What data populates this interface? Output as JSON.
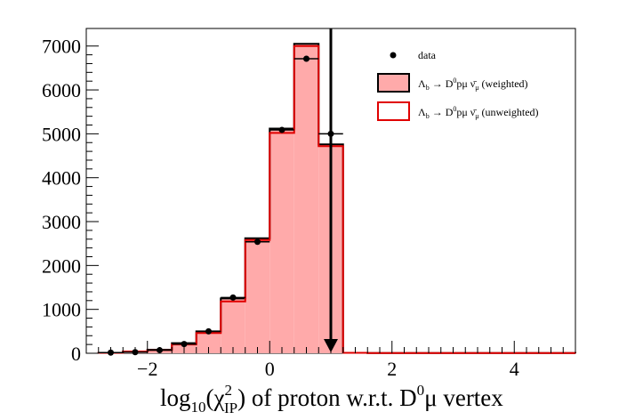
{
  "chart_data": {
    "type": "bar",
    "style": "histogram",
    "title": "",
    "xlabel": "log10(χ²IP) of proton w.r.t. D0μ vertex",
    "ylabel": "",
    "xlim": [
      -3,
      5
    ],
    "ylim": [
      0,
      7400
    ],
    "x_ticks": [
      "−2",
      "0",
      "2",
      "4"
    ],
    "y_ticks": [
      "0",
      "1000",
      "2000",
      "3000",
      "4000",
      "5000",
      "6000",
      "7000"
    ],
    "bin_edges": [
      -2.8,
      -2.4,
      -2.0,
      -1.6,
      -1.2,
      -0.8,
      -0.4,
      0.0,
      0.4,
      0.8,
      1.2,
      1.6,
      2.0,
      2.4,
      2.8,
      3.2,
      3.6,
      4.0,
      4.4,
      4.8,
      5.2
    ],
    "series": [
      {
        "name": "Λb → D0pμν̄μ (weighted)",
        "kind": "filled",
        "values": [
          10,
          40,
          80,
          230,
          500,
          1250,
          2620,
          5120,
          7050,
          4760,
          10,
          5,
          5,
          5,
          5,
          5,
          5,
          5,
          5,
          5
        ]
      },
      {
        "name": "Λb → D0pμν̄μ (unweighted)",
        "kind": "outline",
        "values": [
          10,
          40,
          70,
          200,
          460,
          1180,
          2580,
          5020,
          7000,
          4720,
          10,
          5,
          5,
          5,
          5,
          5,
          5,
          5,
          5,
          5
        ]
      },
      {
        "name": "data",
        "kind": "points",
        "x": [
          -2.8,
          -2.4,
          -2.0,
          -1.6,
          -1.2,
          -0.8,
          -0.4,
          0.0,
          0.4,
          0.8
        ],
        "values": [
          15,
          25,
          70,
          210,
          500,
          1270,
          2540,
          5090,
          6710,
          5000
        ]
      }
    ],
    "cut_line": {
      "x": 1.0
    },
    "legend": {
      "position": "top-right",
      "data_label": "data",
      "weighted_label": "Λb → D0pμν̄μ (weighted)",
      "unweighted_label": "Λb → D0pμν̄μ (unweighted)"
    },
    "colors": {
      "fill": "#ffaaaa",
      "outline_weighted": "#000000",
      "outline_unweighted": "#e00000",
      "data": "#000000"
    },
    "grid": false
  }
}
